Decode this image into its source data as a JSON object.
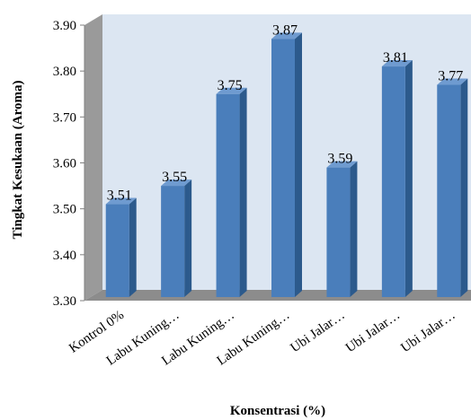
{
  "chart_data": {
    "type": "bar",
    "title": "",
    "xlabel": "Konsentrasi (%)",
    "ylabel": "Tingkat Kesukaan (Aroma)",
    "ylim": [
      3.3,
      3.9
    ],
    "yticks": [
      "3.30",
      "3.40",
      "3.50",
      "3.60",
      "3.70",
      "3.80",
      "3.90"
    ],
    "categories": [
      "Kontrol 0%",
      "Labu Kuning…",
      "Labu Kuning…",
      "Labu Kuning…",
      "Ubi Jalar…",
      "Ubi Jalar…",
      "Ubi Jalar…"
    ],
    "values": [
      3.51,
      3.55,
      3.75,
      3.87,
      3.59,
      3.81,
      3.77
    ],
    "data_labels": [
      "3.51",
      "3.55",
      "3.75",
      "3.87",
      "3.59",
      "3.81",
      "3.77"
    ],
    "grid": false,
    "legend": "none",
    "style": "3d-column",
    "colors": {
      "bar_front": "#4a7ebb",
      "bar_side": "#2c5a8c",
      "bar_top": "#6f9bd0",
      "back_wall": "#dce6f2",
      "side_wall": "#9a9a9a",
      "floor": "#8c8c8c"
    }
  }
}
